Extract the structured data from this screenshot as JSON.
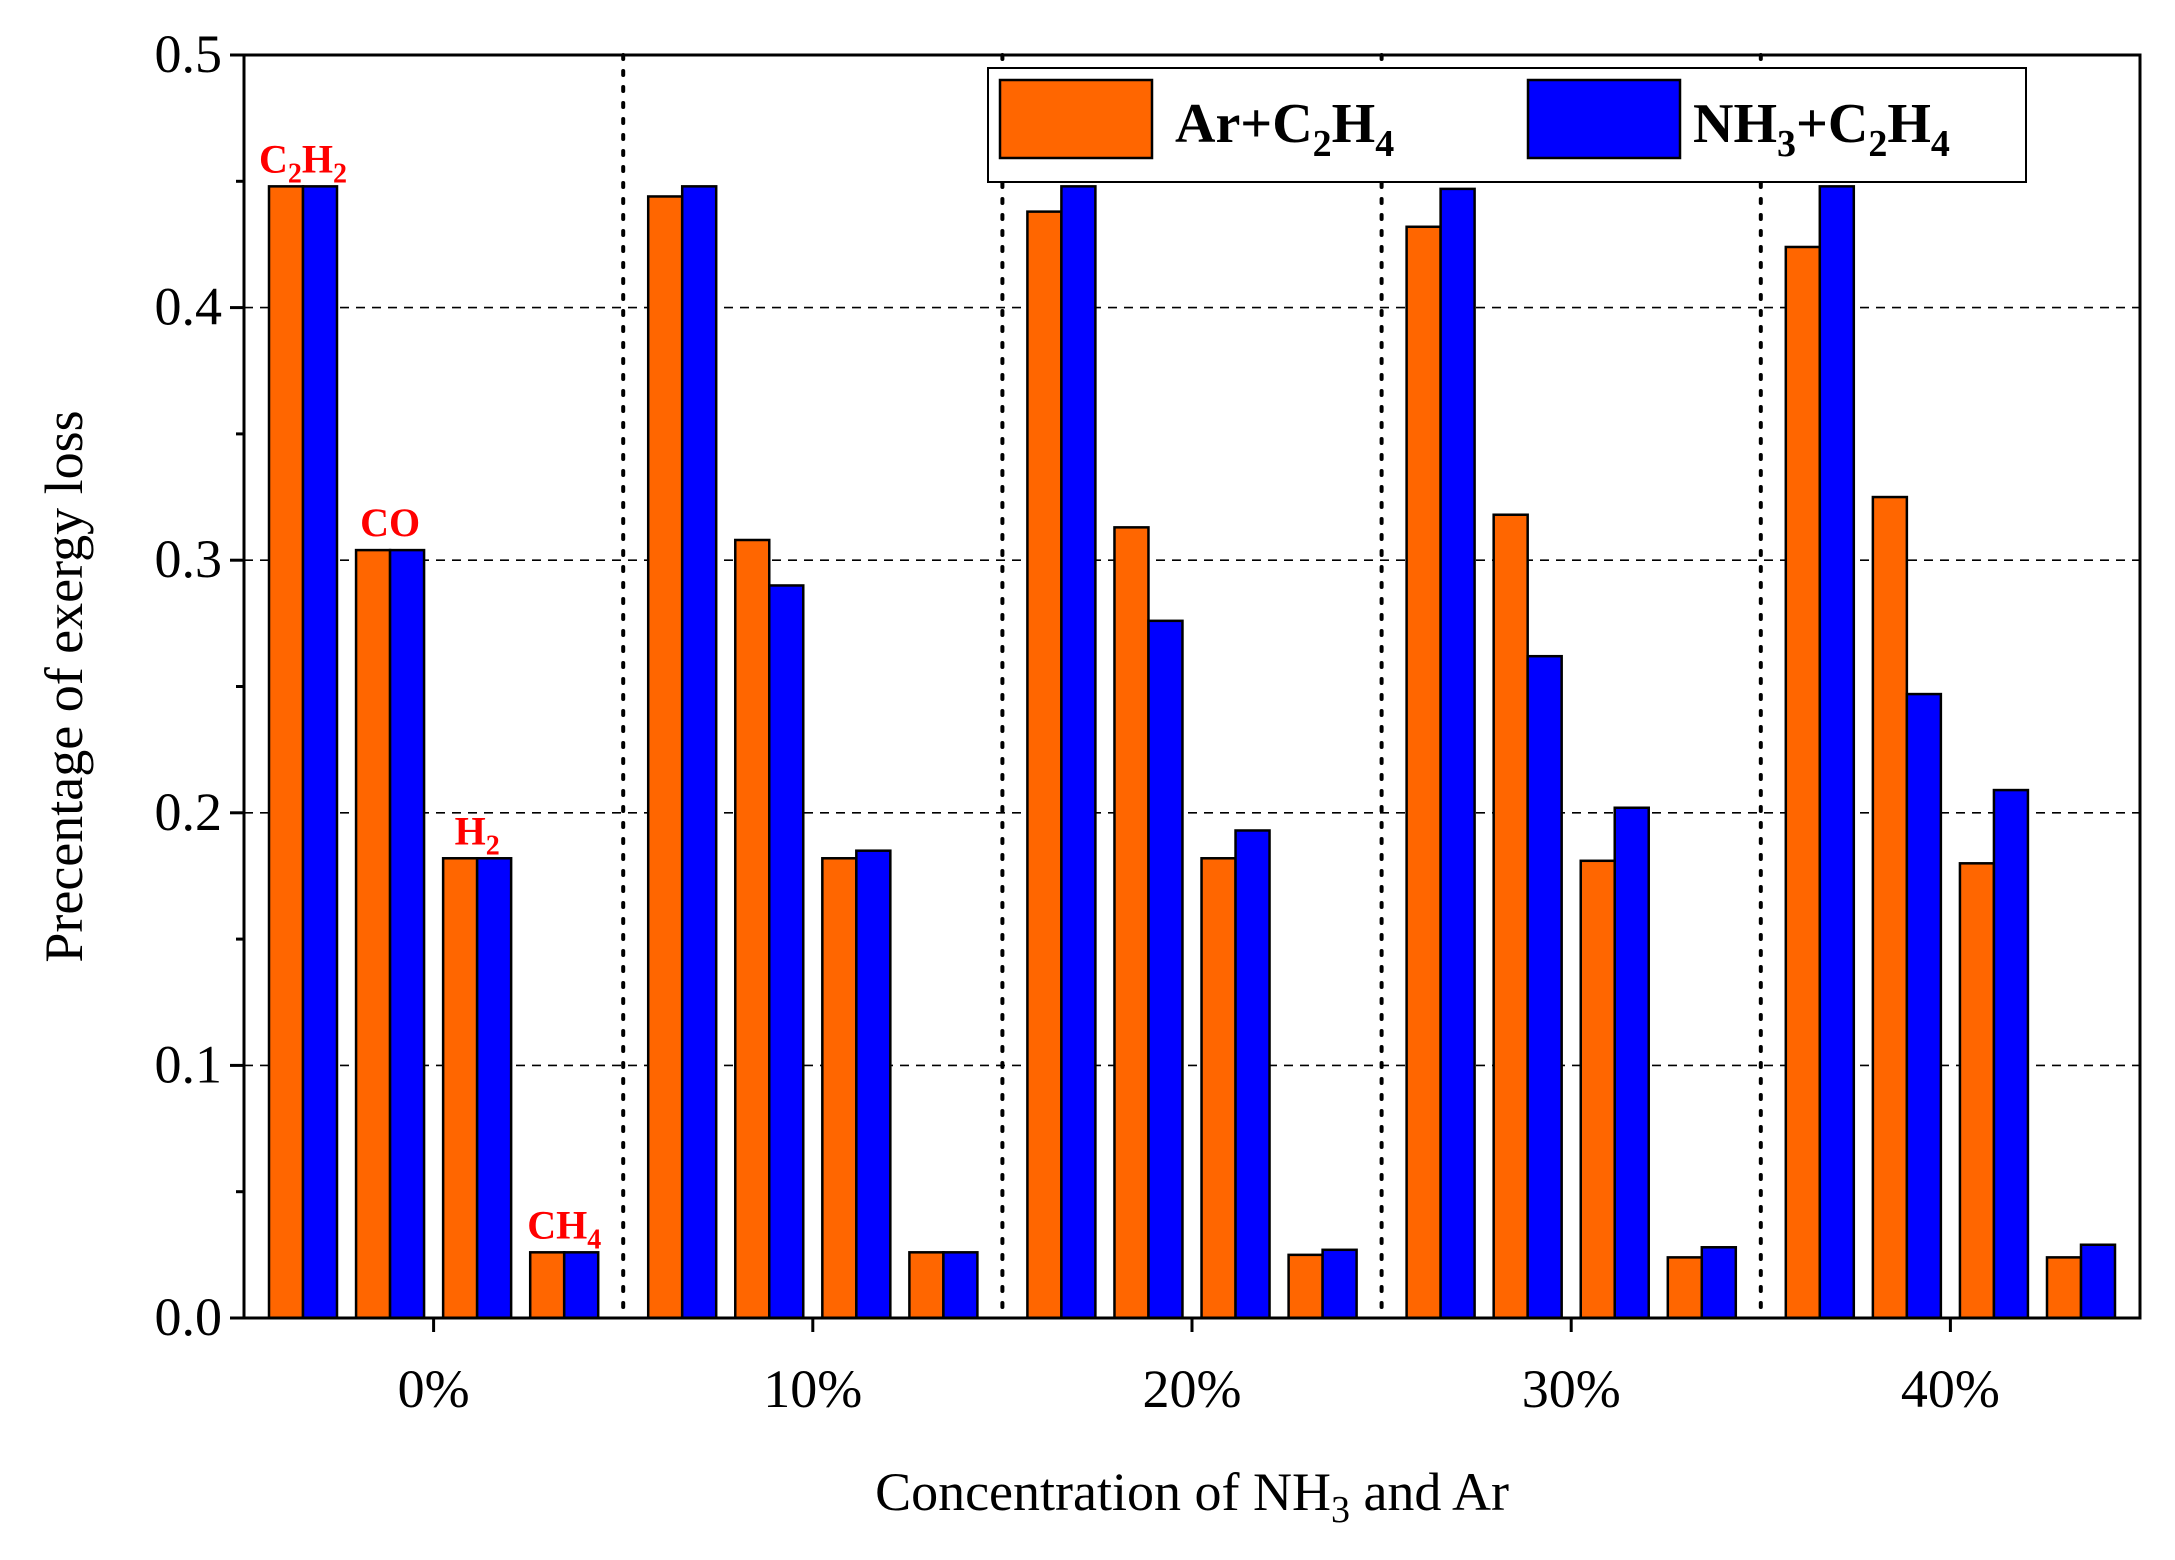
{
  "chart_data": {
    "type": "bar",
    "xlabel": {
      "prefix": "Concentration of NH",
      "sub": "3",
      "suffix": " and Ar"
    },
    "ylabel": "Precentage of exergy loss",
    "ylim": [
      0,
      0.5
    ],
    "yticks": [
      "0.0",
      "0.1",
      "0.2",
      "0.3",
      "0.4",
      "0.5"
    ],
    "ytick_values": [
      0,
      0.1,
      0.2,
      0.3,
      0.4,
      0.5
    ],
    "grid": "horizontal dashed",
    "legend_position": "top-right",
    "categories": [
      "0%",
      "10%",
      "20%",
      "30%",
      "40%"
    ],
    "species": [
      [
        {
          "t": "C",
          "sub": false
        },
        {
          "t": "2",
          "sub": true
        },
        {
          "t": "H",
          "sub": false
        },
        {
          "t": "2",
          "sub": true
        }
      ],
      [
        {
          "t": "CO",
          "sub": false
        }
      ],
      [
        {
          "t": "H",
          "sub": false
        },
        {
          "t": "2",
          "sub": true
        }
      ],
      [
        {
          "t": "CH",
          "sub": false
        },
        {
          "t": "4",
          "sub": true
        }
      ]
    ],
    "species_label_group": "0%",
    "series": [
      {
        "name": [
          {
            "t": "Ar+C",
            "sub": false
          },
          {
            "t": "2",
            "sub": true
          },
          {
            "t": "H",
            "sub": false
          },
          {
            "t": "4",
            "sub": true
          }
        ],
        "color": "#ff6600",
        "values": [
          [
            0.448,
            0.304,
            0.182,
            0.026
          ],
          [
            0.444,
            0.308,
            0.182,
            0.026
          ],
          [
            0.438,
            0.313,
            0.182,
            0.025
          ],
          [
            0.432,
            0.318,
            0.181,
            0.024
          ],
          [
            0.424,
            0.325,
            0.18,
            0.024
          ]
        ]
      },
      {
        "name": [
          {
            "t": "NH",
            "sub": false
          },
          {
            "t": "3",
            "sub": true
          },
          {
            "t": "+C",
            "sub": false
          },
          {
            "t": "2",
            "sub": true
          },
          {
            "t": "H",
            "sub": false
          },
          {
            "t": "4",
            "sub": true
          }
        ],
        "color": "#0000ff",
        "values": [
          [
            0.448,
            0.304,
            0.182,
            0.026
          ],
          [
            0.448,
            0.29,
            0.185,
            0.026
          ],
          [
            0.448,
            0.276,
            0.193,
            0.027
          ],
          [
            0.447,
            0.262,
            0.202,
            0.028
          ],
          [
            0.448,
            0.247,
            0.209,
            0.029
          ]
        ]
      }
    ],
    "label_color": "#ff0000"
  }
}
